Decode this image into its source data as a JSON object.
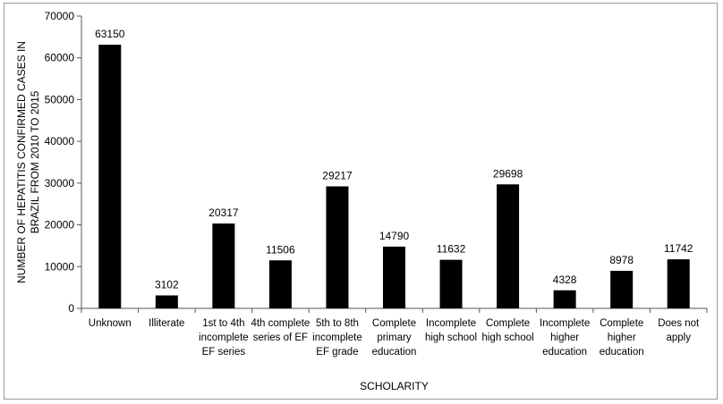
{
  "chart_data": {
    "type": "bar",
    "title": "",
    "xlabel": "SCHOLARITY",
    "ylabel_lines": [
      "NUMBER OF HEPATITIS CONFIRMED CASES IN",
      "BRAZIL FROM 2010 TO 2015"
    ],
    "categories": [
      [
        "Unknown"
      ],
      [
        "Illiterate"
      ],
      [
        "1st to 4th",
        "incomplete",
        "EF series"
      ],
      [
        "4th complete",
        "series of EF"
      ],
      [
        "5th to 8th",
        "incomplete",
        "EF grade"
      ],
      [
        "Complete",
        "primary",
        "education"
      ],
      [
        "Incomplete",
        "high school"
      ],
      [
        "Complete",
        "high school"
      ],
      [
        "Incomplete",
        "higher",
        "education"
      ],
      [
        "Complete",
        "higher",
        "education"
      ],
      [
        "Does not",
        "apply"
      ]
    ],
    "values": [
      63150,
      3102,
      20317,
      11506,
      29217,
      14790,
      11632,
      29698,
      4328,
      8978,
      11742
    ],
    "ylim": [
      0,
      70000
    ],
    "yticks": [
      0,
      10000,
      20000,
      30000,
      40000,
      50000,
      60000,
      70000
    ],
    "bar_color": "#000000",
    "grid": false,
    "legend": "none"
  }
}
